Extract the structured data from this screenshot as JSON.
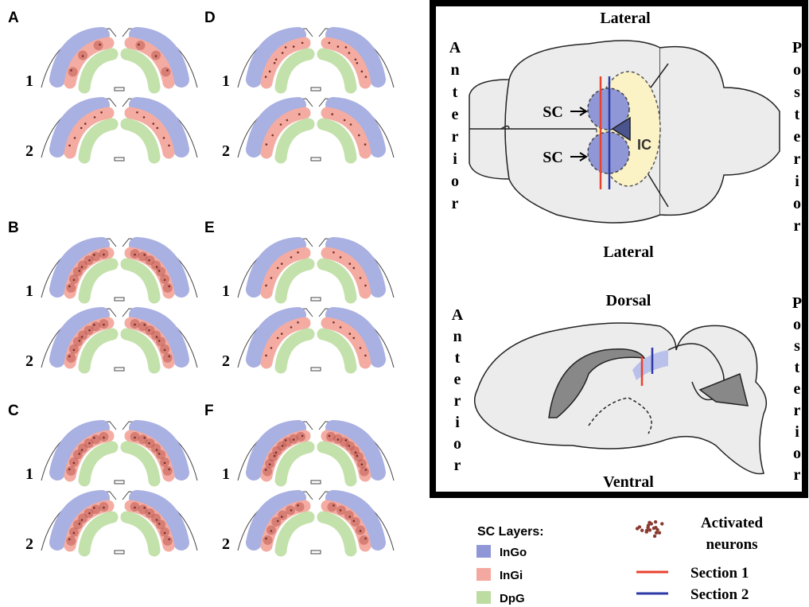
{
  "panels": [
    {
      "label": "A",
      "sections": [
        "1",
        "2"
      ]
    },
    {
      "label": "D",
      "sections": [
        "1",
        "2"
      ]
    },
    {
      "label": "B",
      "sections": [
        "1",
        "2"
      ]
    },
    {
      "label": "E",
      "sections": [
        "1",
        "2"
      ]
    },
    {
      "label": "C",
      "sections": [
        "1",
        "2"
      ]
    },
    {
      "label": "F",
      "sections": [
        "1",
        "2"
      ]
    }
  ],
  "top_view": {
    "top": "Lateral",
    "left": "Anterior",
    "right": "Posterior",
    "sc": [
      "SC",
      "SC"
    ],
    "ic": "IC",
    "bottom": "Lateral"
  },
  "side_view": {
    "top": "Dorsal",
    "left": "Anterior",
    "right": "Posterior",
    "bottom": "Ventral"
  },
  "legend": {
    "title": "SC Layers:",
    "layers": [
      "InGo",
      "InGi",
      "DpG"
    ],
    "neurons": [
      "Activated",
      "neurons"
    ],
    "sections": [
      "Section 1",
      "Section 2"
    ]
  }
}
